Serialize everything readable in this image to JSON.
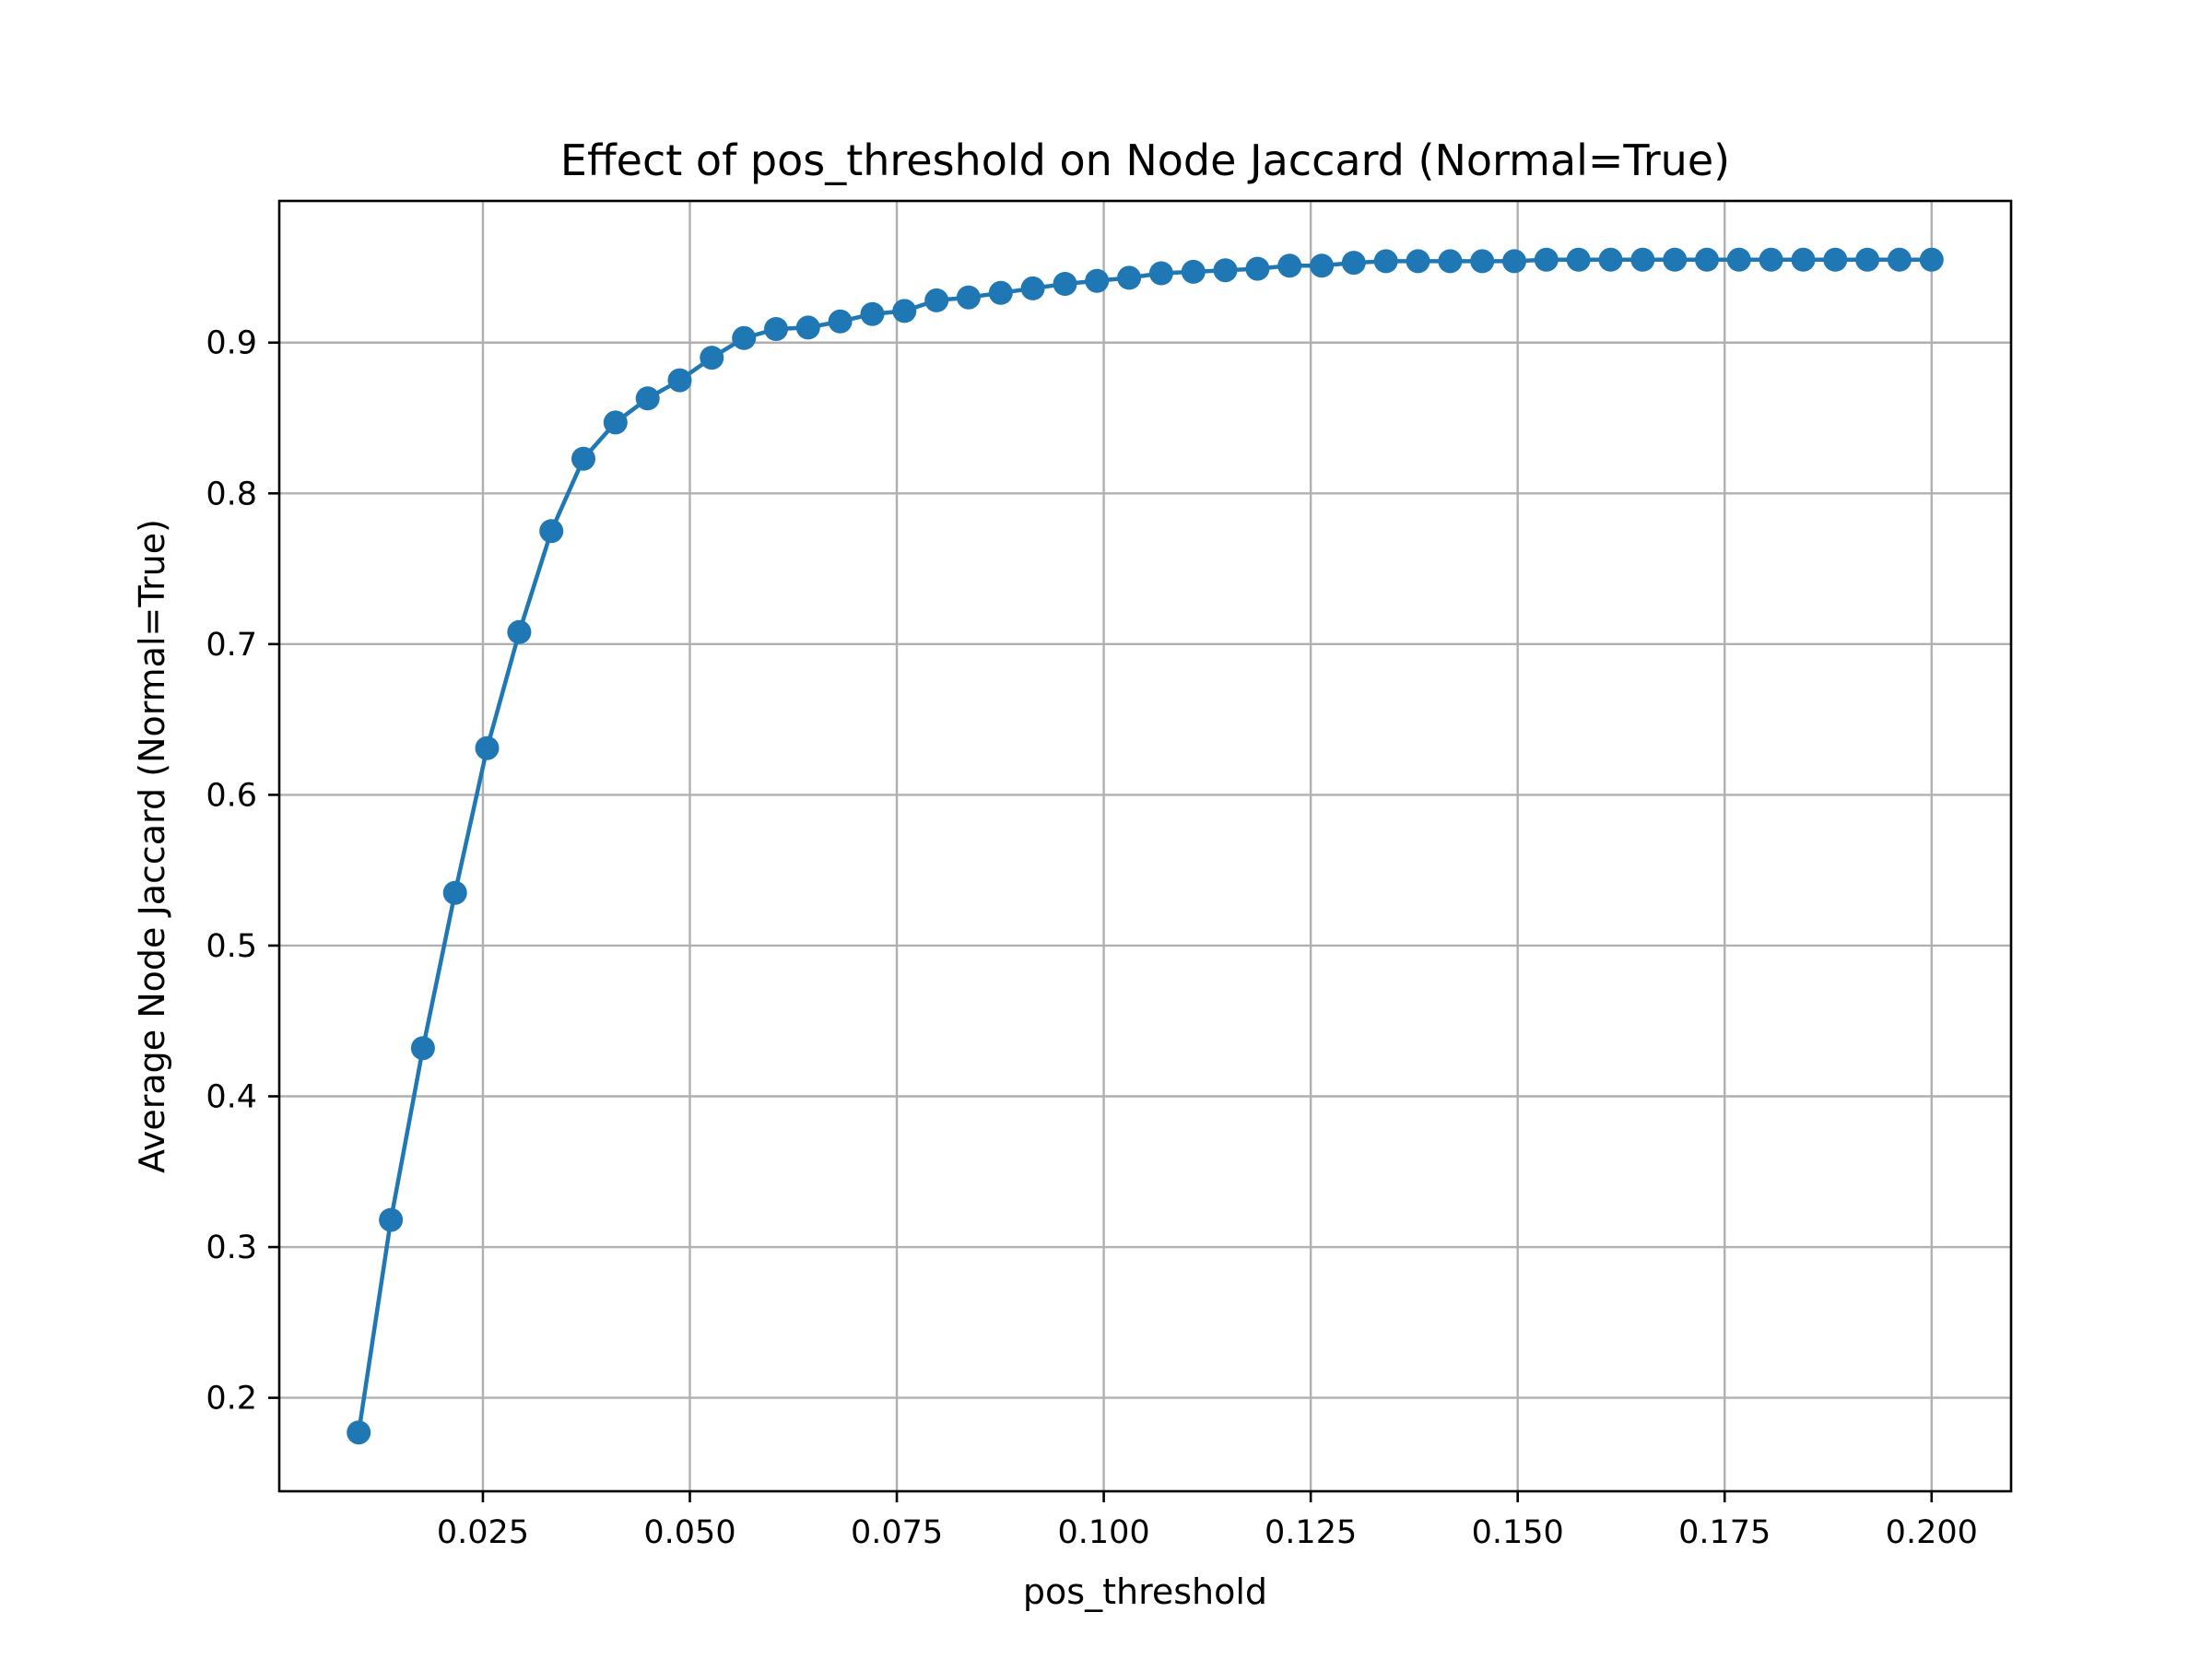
{
  "chart_data": {
    "type": "line",
    "title": "Effect of pos_threshold on Node Jaccard (Normal=True)",
    "xlabel": "pos_threshold",
    "ylabel": "Average Node Jaccard (Normal=True)",
    "xlim": [
      0.0004,
      0.2096
    ],
    "ylim": [
      0.138,
      0.994
    ],
    "xticks": [
      0.025,
      0.05,
      0.075,
      0.1,
      0.125,
      0.15,
      0.175,
      0.2
    ],
    "xtick_labels": [
      "0.025",
      "0.050",
      "0.075",
      "0.100",
      "0.125",
      "0.150",
      "0.175",
      "0.200"
    ],
    "yticks": [
      0.2,
      0.3,
      0.4,
      0.5,
      0.6,
      0.7,
      0.8,
      0.9
    ],
    "ytick_labels": [
      "0.2",
      "0.3",
      "0.4",
      "0.5",
      "0.6",
      "0.7",
      "0.8",
      "0.9"
    ],
    "grid": true,
    "color": "#1f77b4",
    "marker": "circle",
    "series": [
      {
        "x": [
          0.01,
          0.01388,
          0.01776,
          0.02163,
          0.02551,
          0.02939,
          0.03327,
          0.03714,
          0.04102,
          0.0449,
          0.04878,
          0.05265,
          0.05653,
          0.06041,
          0.06429,
          0.06816,
          0.07204,
          0.07592,
          0.0798,
          0.08367,
          0.08755,
          0.09143,
          0.09531,
          0.09918,
          0.10306,
          0.10694,
          0.11082,
          0.11469,
          0.11857,
          0.12245,
          0.12633,
          0.1302,
          0.13408,
          0.13796,
          0.14184,
          0.14571,
          0.14959,
          0.15347,
          0.15735,
          0.16122,
          0.1651,
          0.16898,
          0.17286,
          0.17673,
          0.18061,
          0.18449,
          0.18837,
          0.19224,
          0.19612,
          0.2
        ],
        "y": [
          0.177,
          0.318,
          0.432,
          0.535,
          0.631,
          0.708,
          0.775,
          0.823,
          0.847,
          0.863,
          0.875,
          0.89,
          0.903,
          0.909,
          0.91,
          0.914,
          0.919,
          0.921,
          0.928,
          0.93,
          0.933,
          0.936,
          0.939,
          0.941,
          0.943,
          0.946,
          0.947,
          0.948,
          0.949,
          0.951,
          0.951,
          0.953,
          0.954,
          0.954,
          0.954,
          0.954,
          0.954,
          0.955,
          0.955,
          0.955,
          0.955,
          0.955,
          0.955,
          0.955,
          0.955,
          0.955,
          0.955,
          0.955,
          0.955,
          0.955
        ]
      }
    ]
  }
}
